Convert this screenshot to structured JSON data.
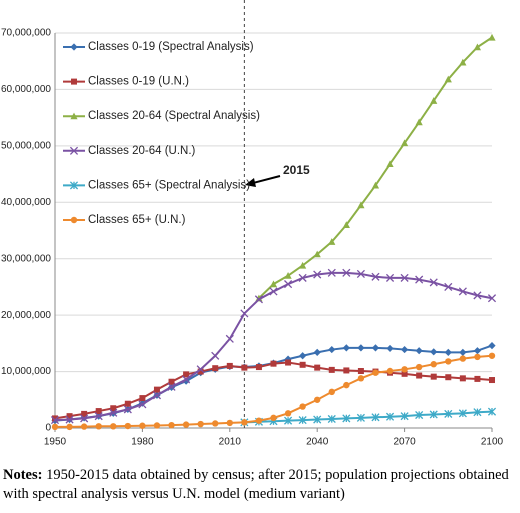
{
  "chart_data": {
    "type": "line",
    "x": [
      1950,
      1955,
      1960,
      1965,
      1970,
      1975,
      1980,
      1985,
      1990,
      1995,
      2000,
      2005,
      2010,
      2015,
      2020,
      2025,
      2030,
      2035,
      2040,
      2045,
      2050,
      2055,
      2060,
      2065,
      2070,
      2075,
      2080,
      2085,
      2090,
      2095,
      2100
    ],
    "series": [
      {
        "name": "Classes 0-19 (Spectral Analysis)",
        "color": "#3a6fb0",
        "values": [
          1300000,
          1500000,
          1800000,
          2100000,
          2600000,
          3300000,
          4400000,
          5800000,
          7200000,
          8300000,
          9800000,
          10400000,
          10900000,
          10800000,
          11000000,
          11500000,
          12200000,
          12800000,
          13400000,
          13900000,
          14200000,
          14200000,
          14200000,
          14100000,
          13900000,
          13700000,
          13500000,
          13400000,
          13400000,
          13700000,
          14600000
        ]
      },
      {
        "name": "Classes 0-19 (U.N.)",
        "color": "#b03a3a",
        "values": [
          1700000,
          2100000,
          2500000,
          3000000,
          3500000,
          4300000,
          5300000,
          6800000,
          8200000,
          9500000,
          10000000,
          10600000,
          11000000,
          10700000,
          10800000,
          11400000,
          11600000,
          11200000,
          10700000,
          10300000,
          10200000,
          10100000,
          10000000,
          9800000,
          9600000,
          9300000,
          9100000,
          9000000,
          8800000,
          8700000,
          8500000
        ]
      },
      {
        "name": "Classes 20-64 (Spectral Analysis)",
        "color": "#8db046",
        "values": [
          null,
          null,
          null,
          null,
          null,
          null,
          null,
          null,
          null,
          null,
          null,
          null,
          null,
          null,
          23000000,
          25500000,
          27000000,
          28800000,
          30800000,
          33000000,
          36000000,
          39500000,
          43000000,
          46800000,
          50500000,
          54200000,
          58000000,
          61800000,
          64800000,
          67500000,
          69200000
        ]
      },
      {
        "name": "Classes 20-64 (U.N.)",
        "color": "#7a52a3",
        "values": [
          1400000,
          1500000,
          1700000,
          2100000,
          2700000,
          3300000,
          4200000,
          5800000,
          7300000,
          8600000,
          10400000,
          12800000,
          15800000,
          20300000,
          22800000,
          24200000,
          25500000,
          26600000,
          27200000,
          27500000,
          27500000,
          27300000,
          26800000,
          26600000,
          26600000,
          26300000,
          25800000,
          25000000,
          24200000,
          23500000,
          23000000
        ]
      },
      {
        "name": "Classes 65+ (Spectral Analysis)",
        "color": "#3eaac8",
        "values": [
          null,
          null,
          null,
          null,
          null,
          null,
          null,
          null,
          null,
          null,
          null,
          null,
          null,
          1000000,
          1100000,
          1200000,
          1300000,
          1400000,
          1500000,
          1600000,
          1700000,
          1800000,
          1900000,
          2000000,
          2100000,
          2300000,
          2400000,
          2500000,
          2600000,
          2800000,
          2900000
        ]
      },
      {
        "name": "Classes 65+ (U.N.)",
        "color": "#ee8a2e",
        "values": [
          200000,
          200000,
          250000,
          300000,
          300000,
          350000,
          400000,
          450000,
          500000,
          600000,
          700000,
          800000,
          900000,
          1000000,
          1300000,
          1800000,
          2600000,
          3800000,
          5000000,
          6400000,
          7600000,
          8800000,
          9800000,
          10100000,
          10400000,
          10800000,
          11300000,
          11800000,
          12300000,
          12600000,
          12800000
        ]
      }
    ],
    "xlim": [
      1950,
      2100
    ],
    "xticks": [
      1950,
      1980,
      2010,
      2040,
      2070,
      2100
    ],
    "ylim": [
      0,
      70000000
    ],
    "yticks": [
      0,
      {
        "value": 10000000,
        "label": "10,000,000"
      },
      {
        "value": 20000000,
        "label": "20,000,000"
      },
      {
        "value": 30000000,
        "label": "30,000,000"
      },
      {
        "value": 40000000,
        "label": "40,000,000"
      },
      {
        "value": 50000000,
        "label": "50,000,000"
      },
      {
        "value": 60000000,
        "label": "60,000,000"
      },
      {
        "value": 70000000,
        "label": "70,000,000"
      }
    ],
    "vline": 2015,
    "annotation": "2015",
    "grid": true
  },
  "notes": {
    "label": "Notes:",
    "text": "1950-2015 data obtained by census; after 2015; population projections obtained with spectral analysis versus U.N. model (medium variant)"
  }
}
